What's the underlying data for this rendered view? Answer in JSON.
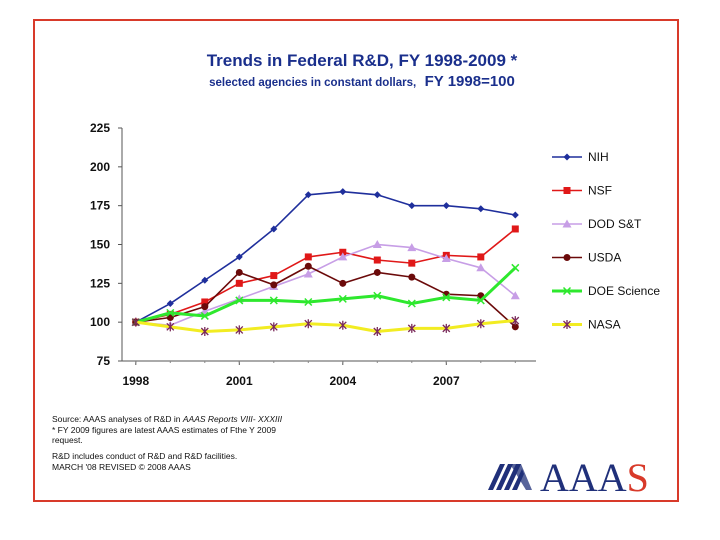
{
  "chart_data": {
    "type": "line",
    "title": "Trends in Federal R&D, FY 1998-2009 *",
    "subtitle": "selected agencies in constant dollars,",
    "subtitle_emphasis": "FY 1998=100",
    "x": [
      1998,
      1999,
      2000,
      2001,
      2002,
      2003,
      2004,
      2005,
      2006,
      2007,
      2008,
      2009
    ],
    "x_tick_labels": [
      "1998",
      "2001",
      "2004",
      "2007"
    ],
    "x_ticks": [
      1998,
      2001,
      2004,
      2007
    ],
    "y_ticks": [
      75,
      100,
      125,
      150,
      175,
      200,
      225
    ],
    "ylim": [
      75,
      225
    ],
    "xlim": [
      1997.6,
      2009.6
    ],
    "grid": false,
    "legend_position": "right",
    "series": [
      {
        "name": "NIH",
        "color": "#1f2f9c",
        "marker": "diamond",
        "values": [
          100,
          112,
          127,
          142,
          160,
          182,
          184,
          182,
          175,
          175,
          173,
          169
        ]
      },
      {
        "name": "NSF",
        "color": "#e01818",
        "marker": "square",
        "values": [
          100,
          105,
          113,
          125,
          130,
          142,
          145,
          140,
          138,
          143,
          142,
          160
        ]
      },
      {
        "name": "DOD S&T",
        "color": "#c79ee6",
        "marker": "triangle",
        "values": [
          100,
          98,
          107,
          115,
          123,
          131,
          142,
          150,
          148,
          141,
          135,
          117
        ]
      },
      {
        "name": "USDA",
        "color": "#6b0a0a",
        "marker": "circle",
        "values": [
          100,
          103,
          110,
          132,
          124,
          136,
          125,
          132,
          129,
          118,
          117,
          97
        ]
      },
      {
        "name": "DOE Science",
        "color": "#2ee82e",
        "marker": "x",
        "values": [
          100,
          106,
          104,
          114,
          114,
          113,
          115,
          117,
          112,
          116,
          114,
          135
        ]
      },
      {
        "name": "NASA",
        "color": "#f2ec22",
        "marker": "star",
        "marker_color": "#7a2a5a",
        "values": [
          100,
          97,
          94,
          95,
          97,
          99,
          98,
          94,
          96,
          96,
          99,
          101
        ]
      }
    ]
  },
  "notes": {
    "source_prefix": "Source: AAAS analyses of R&D in ",
    "source_italic": "AAAS Reports VIII- XXXIII",
    "footnote_line1": "* FY 2009 figures are latest AAAS estimates of Fthe Y 2009",
    "footnote_line2": "request.",
    "conduct": "R&D includes conduct of R&D and R&D facilities.",
    "revised": "MARCH '08 REVISED © 2008 AAAS"
  },
  "logo": {
    "text": "AAAS",
    "mark_color": "#20307a",
    "accent_color": "#d83a2a"
  }
}
